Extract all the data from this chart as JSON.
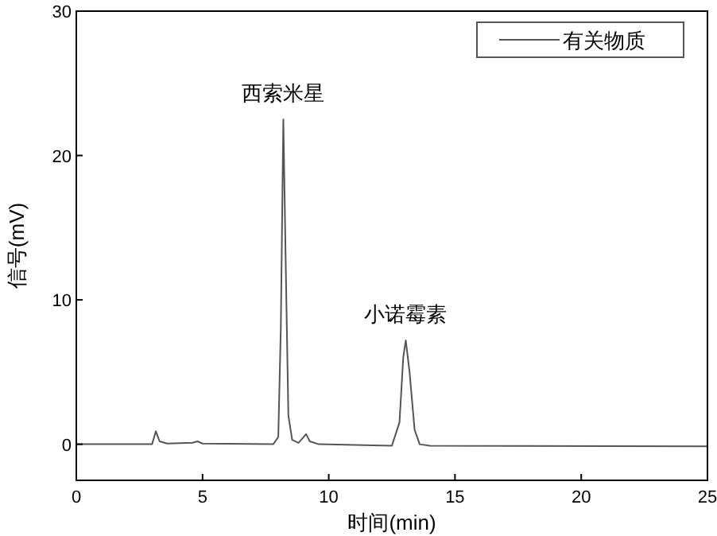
{
  "chart_data": {
    "type": "line",
    "xlabel": "时间(min)",
    "ylabel": "信号(mV)",
    "legend": "top right",
    "grid": false,
    "marker": "none",
    "line_style": "solid",
    "xlim": [
      0,
      25
    ],
    "xticks": [
      0,
      5,
      10,
      15,
      20,
      25
    ],
    "ylim": [
      -2.5,
      30
    ],
    "yticks": [
      0,
      10,
      20,
      30
    ],
    "annotations": [
      {
        "text": "西索米星",
        "x": 8.2,
        "y": 22.5
      },
      {
        "text": "小诺霉素",
        "x": 13.05,
        "y": 7.2
      }
    ],
    "series": [
      {
        "name": "有关物质",
        "color": "#555555",
        "x": [
          0,
          3.0,
          3.15,
          3.3,
          3.6,
          4.6,
          4.8,
          5.0,
          7.8,
          8.0,
          8.1,
          8.2,
          8.3,
          8.4,
          8.55,
          8.8,
          9.0,
          9.1,
          9.25,
          9.6,
          12.5,
          12.8,
          12.95,
          13.05,
          13.2,
          13.4,
          13.6,
          14,
          25
        ],
        "values": [
          0,
          0,
          0.9,
          0.2,
          0.05,
          0.1,
          0.2,
          0.05,
          0,
          0.5,
          8,
          22.5,
          12,
          2,
          0.3,
          0.1,
          0.5,
          0.7,
          0.2,
          0,
          -0.1,
          1.5,
          6,
          7.2,
          5,
          1,
          0,
          -0.1,
          -0.15
        ]
      }
    ]
  }
}
